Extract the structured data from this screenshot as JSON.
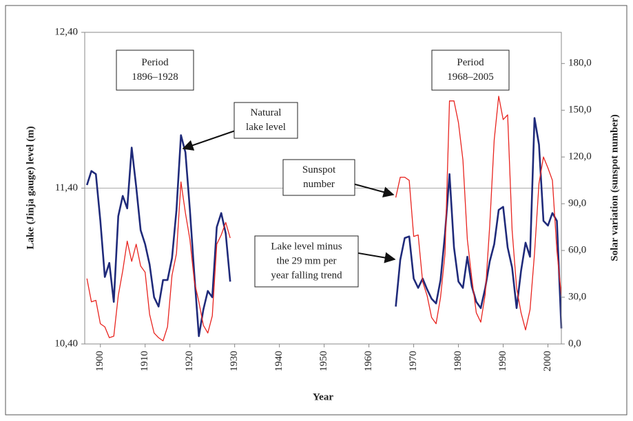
{
  "chart_data": {
    "type": "line",
    "x_label": "Year",
    "y_label": "Lake (Jinja gauge) level (m)",
    "y2_label": "Solar variation (sunspot number)",
    "x": [
      1897,
      1898,
      1899,
      1900,
      1901,
      1902,
      1903,
      1904,
      1905,
      1906,
      1907,
      1908,
      1909,
      1910,
      1911,
      1912,
      1913,
      1914,
      1915,
      1916,
      1917,
      1918,
      1919,
      1920,
      1921,
      1922,
      1923,
      1924,
      1925,
      1926,
      1927,
      1928,
      1929,
      1948,
      1966,
      1967,
      1968,
      1969,
      1970,
      1971,
      1972,
      1973,
      1974,
      1975,
      1976,
      1977,
      1978,
      1979,
      1980,
      1981,
      1982,
      1983,
      1984,
      1985,
      1986,
      1987,
      1988,
      1989,
      1990,
      1991,
      1992,
      1993,
      1994,
      1995,
      1996,
      1997,
      1998,
      1999,
      2000,
      2001,
      2002,
      2003
    ],
    "series": [
      {
        "color": "#1f2a7a",
        "axis": "y",
        "values": [
          11.42,
          11.51,
          11.49,
          11.19,
          10.83,
          10.92,
          10.67,
          11.22,
          11.35,
          11.27,
          11.66,
          11.41,
          11.13,
          11.04,
          10.91,
          10.7,
          10.64,
          10.81,
          10.81,
          10.95,
          11.26,
          11.74,
          11.63,
          11.26,
          10.84,
          10.45,
          10.62,
          10.74,
          10.7,
          11.15,
          11.24,
          11.11,
          10.8,
          null,
          10.64,
          10.94,
          11.08,
          11.09,
          10.82,
          10.76,
          10.82,
          10.75,
          10.69,
          10.66,
          10.81,
          11.11,
          11.49,
          11.02,
          10.8,
          10.76,
          10.96,
          10.77,
          10.67,
          10.63,
          10.76,
          10.93,
          11.04,
          11.26,
          11.28,
          11.02,
          10.89,
          10.63,
          10.87,
          11.05,
          10.96,
          11.85,
          11.68,
          11.19,
          11.16,
          11.24,
          11.19,
          10.5
        ]
      },
      {
        "color": "#e8231e",
        "axis": "y2",
        "values": [
          42,
          27,
          28,
          13,
          11,
          4,
          5,
          31,
          47,
          66,
          53,
          64,
          50,
          46,
          19,
          7,
          4,
          2,
          11,
          44,
          58,
          104,
          84,
          67,
          40,
          27,
          12,
          7,
          18,
          64,
          70,
          78,
          68,
          null,
          94,
          107,
          107,
          105,
          69,
          70,
          40,
          31,
          17,
          13,
          30,
          58,
          156,
          156,
          142,
          118,
          67,
          42,
          20,
          14,
          32,
          76,
          131,
          159,
          144,
          147,
          73,
          36,
          20,
          9,
          22,
          58,
          103,
          120,
          113,
          105,
          60,
          31
        ]
      }
    ],
    "xlim": [
      1896.5,
      2003
    ],
    "xticks": [
      1900,
      1910,
      1920,
      1930,
      1940,
      1950,
      1960,
      1970,
      1980,
      1990,
      2000
    ],
    "ylim": [
      10.4,
      12.4
    ],
    "yticks": [
      {
        "value": 10.4,
        "label": "10,40"
      },
      {
        "value": 11.4,
        "label": "11,40"
      },
      {
        "value": 12.4,
        "label": "12,40"
      }
    ],
    "y2lim": [
      0,
      200
    ],
    "y2ticks": [
      {
        "value": 0,
        "label": "0,0"
      },
      {
        "value": 30,
        "label": "30,0"
      },
      {
        "value": 60,
        "label": "60,0"
      },
      {
        "value": 90,
        "label": "90,0"
      },
      {
        "value": 120,
        "label": "120,0"
      },
      {
        "value": 150,
        "label": "150,0"
      },
      {
        "value": 180,
        "label": "180,0"
      }
    ],
    "grid": true,
    "annotations": [
      [
        "Period",
        "1896–1928"
      ],
      [
        "Period",
        "1968–2005"
      ],
      [
        "Natural",
        "lake level"
      ],
      [
        "Sunspot",
        "number"
      ],
      [
        "Lake level minus",
        "the 29 mm per",
        "year falling trend"
      ]
    ]
  }
}
